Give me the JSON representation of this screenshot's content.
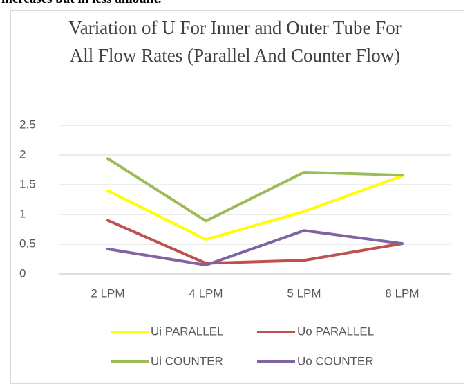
{
  "page_text": "increases but in less amount.",
  "chart_data": {
    "type": "line",
    "title": "Variation of U For Inner and Outer Tube For All Flow Rates (Parallel And Counter Flow)",
    "categories": [
      "2 LPM",
      "4 LPM",
      "5 LPM",
      "8 LPM"
    ],
    "series": [
      {
        "name": "Ui PARALLEL",
        "color": "#ffff00",
        "values": [
          1.4,
          0.58,
          1.05,
          1.65
        ]
      },
      {
        "name": "Uo PARALLEL",
        "color": "#c0504d",
        "values": [
          0.9,
          0.18,
          0.23,
          0.51
        ]
      },
      {
        "name": "Ui COUNTER",
        "color": "#9bbb59",
        "values": [
          1.94,
          0.89,
          1.71,
          1.66
        ]
      },
      {
        "name": "Uo COUNTER",
        "color": "#8064a2",
        "values": [
          0.42,
          0.15,
          0.73,
          0.51
        ]
      }
    ],
    "ylim": [
      0,
      2.5
    ],
    "yticks": [
      0,
      0.5,
      1,
      1.5,
      2,
      2.5
    ],
    "grid": true,
    "legend": "bottom"
  }
}
